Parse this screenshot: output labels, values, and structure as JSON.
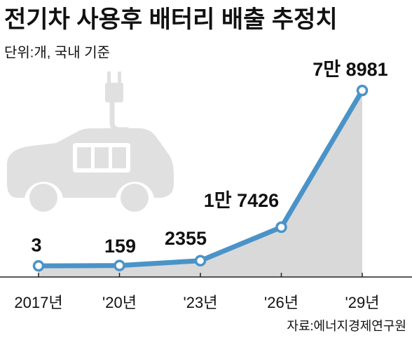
{
  "chart_data": {
    "type": "line",
    "title": "전기차 사용후 배터리 배출 추정치",
    "subtitle": "단위:개, 국내 기준",
    "source": "자료:에너지경제연구원",
    "categories": [
      "2017년",
      "'20년",
      "'23년",
      "'26년",
      "'29년"
    ],
    "values": [
      3,
      159,
      2355,
      17426,
      78981
    ],
    "value_labels": [
      "3",
      "159",
      "2355",
      "1만 7426",
      "7만 8981"
    ],
    "color": "#4a93c8",
    "area_color": "#d9d9d9",
    "ylim": [
      -5000,
      82000
    ]
  }
}
